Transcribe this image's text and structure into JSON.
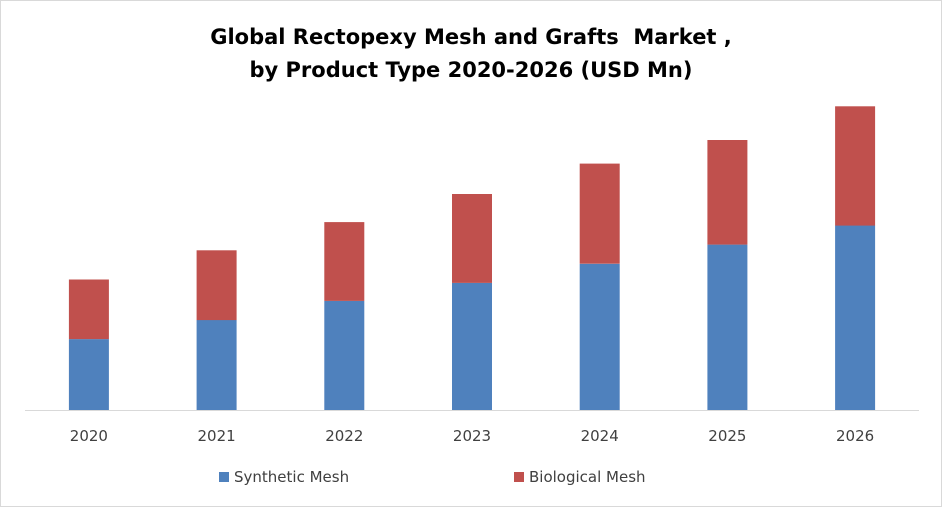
{
  "chart_data": {
    "type": "bar",
    "stacked": true,
    "title": "Global Rectopexy Mesh and Grafts  Market ,\nby Product Type 2020-2026 (USD Mn)",
    "xlabel": "",
    "ylabel": "",
    "categories": [
      "2020",
      "2021",
      "2022",
      "2023",
      "2024",
      "2025",
      "2026"
    ],
    "series": [
      {
        "name": "Synthetic Mesh",
        "color": "#4f81bd",
        "values": [
          63,
          80,
          97,
          113,
          130,
          147,
          164
        ]
      },
      {
        "name": "Biological Mesh",
        "color": "#c0504d",
        "values": [
          53,
          62,
          70,
          79,
          89,
          93,
          106
        ]
      }
    ],
    "ylim": [
      0,
      280
    ],
    "y_axis_visible": false,
    "grid": false,
    "legend_position": "bottom"
  }
}
